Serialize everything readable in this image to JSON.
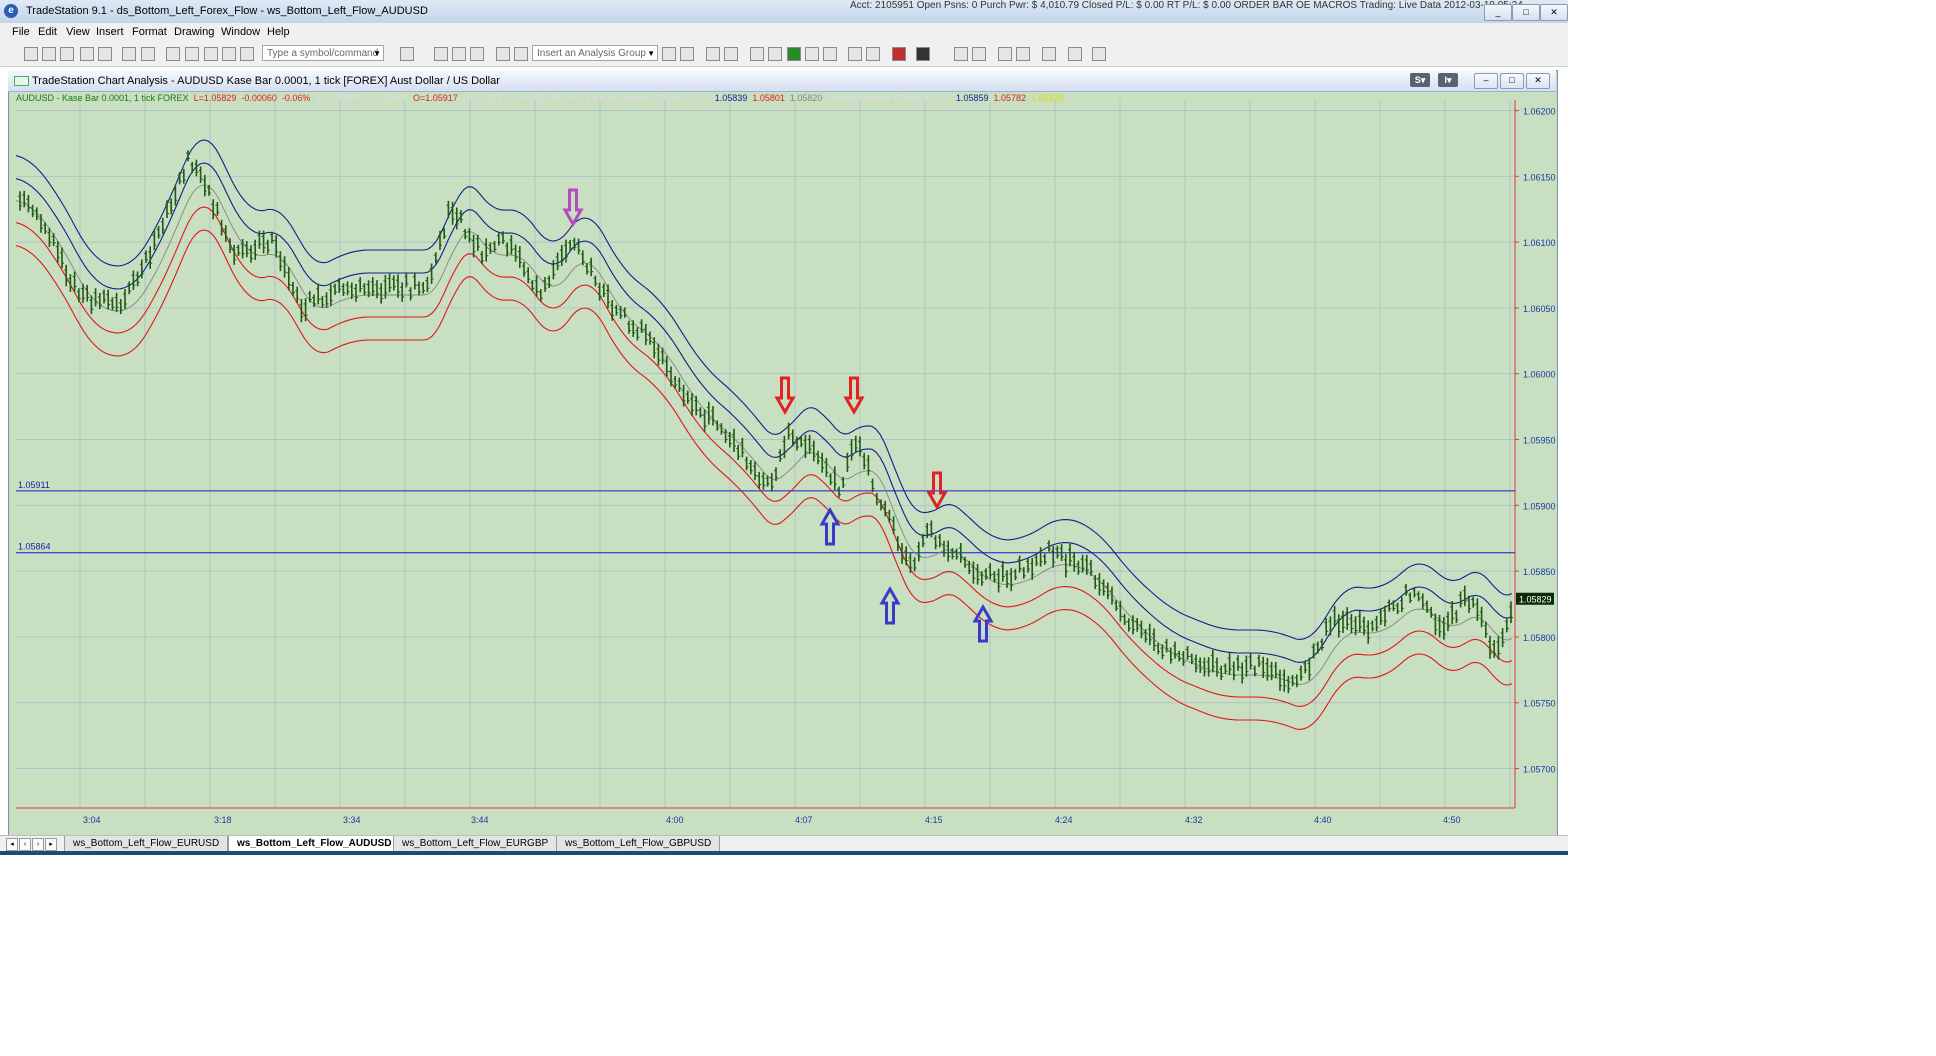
{
  "window": {
    "app_title": "TradeStation 9.1 - ds_Bottom_Left_Forex_Flow - ws_Bottom_Left_Flow_AUDUSD",
    "status_strip": "Acct: 2105951  Open Psns: 0  Purch Pwr: $ 4,010.79  Closed P/L: $ 0.00  RT P/L: $ 0.00  ORDER BAR  OE MACROS  Trading: Live  Data  2012-03-19 05:24",
    "buttons": [
      "_",
      "□",
      "✕"
    ]
  },
  "menu": [
    "File",
    "Edit",
    "View",
    "Insert",
    "Format",
    "Drawing",
    "Window",
    "Help"
  ],
  "toolbar": {
    "symbol_placeholder": "Type a symbol/command",
    "analysis_placeholder": "Insert an Analysis Group"
  },
  "chart_window": {
    "title": "TradeStation Chart Analysis - AUDUSD Kase Bar 0.0001, 1 tick [FOREX] Aust Dollar / US Dollar",
    "btn_s": "S",
    "btn_i": "I",
    "controls": [
      "–",
      "□",
      "✕"
    ]
  },
  "status_line": [
    {
      "text": "AUDUSD - Kase Bar 0.0001, 1 tick  FOREX",
      "color": "#1a7a1a"
    },
    {
      "text": "L=1.05829",
      "color": "#e02020"
    },
    {
      "text": "-0.00060",
      "color": "#e02020"
    },
    {
      "text": "-0.06%",
      "color": "#e02020"
    },
    {
      "text": "B=1.05829",
      "color": "#dddddd"
    },
    {
      "text": "A=1.05846",
      "color": "#dddddd"
    },
    {
      "text": "O=1.05917",
      "color": "#e02020"
    },
    {
      "text": "H=1.06187",
      "color": "#dddddd"
    },
    {
      "text": "Lo=1.05745",
      "color": "#dddddd"
    },
    {
      "text": "V=0",
      "color": "#dddddd"
    },
    {
      "text": "Keltner Channel (Close,20,2,0)",
      "color": "#dddddd"
    },
    {
      "text": "1.05839",
      "color": "#1a1aa0"
    },
    {
      "text": "1.05801",
      "color": "#e02020"
    },
    {
      "text": "1.05820",
      "color": "#888888"
    },
    {
      "text": "Keltner Channel (Close,20,4,0)",
      "color": "#dddddd"
    },
    {
      "text": "1.05859",
      "color": "#1a1aa0"
    },
    {
      "text": "1.05782",
      "color": "#e02020"
    },
    {
      "text": "1.05820",
      "color": "#dddd00"
    }
  ],
  "chart": {
    "price_ticks": [
      "1.06200",
      "1.06150",
      "1.06100",
      "1.06050",
      "1.06000",
      "1.05950",
      "1.05900",
      "1.05850",
      "1.05800",
      "1.05750",
      "1.05700"
    ],
    "time_ticks": [
      "3:04",
      "3:18",
      "3:34",
      "3:44",
      "4:00",
      "4:07",
      "4:15",
      "4:24",
      "4:32",
      "4:40",
      "4:50"
    ],
    "hlines": [
      {
        "label": "1.05911",
        "price": 1.05911
      },
      {
        "label": "1.05864",
        "price": 1.05864
      }
    ],
    "last_price_label": "1.05829",
    "colors": {
      "background": "#c9dfc1",
      "bar": "#1e5a12",
      "upper_band": "#10208c",
      "lower_band": "#e01818",
      "mid": "#7c8a7c",
      "grid": "#a8b8c8",
      "hline": "#1a1ad0",
      "axis": "#e0383a"
    }
  },
  "tabs": [
    {
      "label": "ws_Bottom_Left_Flow_EURUSD",
      "active": false
    },
    {
      "label": "ws_Bottom_Left_Flow_AUDUSD",
      "active": true
    },
    {
      "label": "ws_Bottom_Left_Flow_EURGBP",
      "active": false
    },
    {
      "label": "ws_Bottom_Left_Flow_GBPUSD",
      "active": false
    }
  ]
}
